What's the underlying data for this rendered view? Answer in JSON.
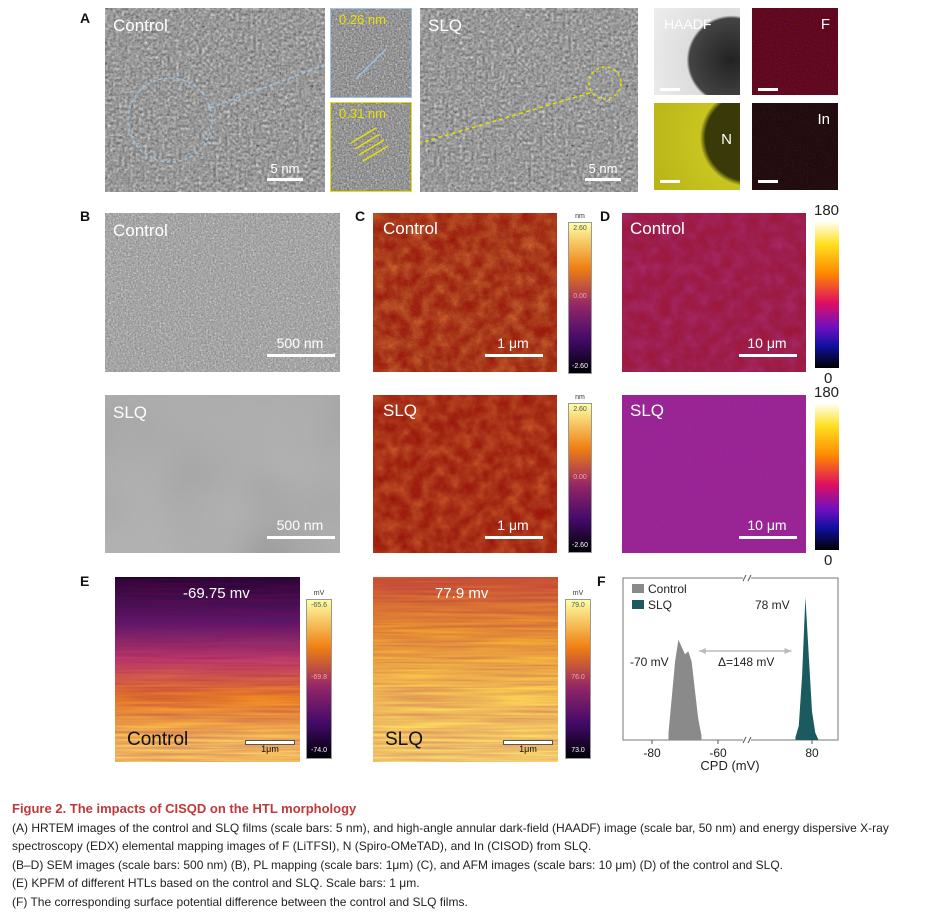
{
  "panels": {
    "A": {
      "label": "A",
      "control_label": "Control",
      "slq_label": "SLQ",
      "scale_control": "5 nm",
      "scale_slq": "5 nm",
      "inset_top_spacing": "0.26 nm",
      "inset_bottom_spacing": "0.31 nm",
      "edx": [
        "HAADF",
        "F",
        "N",
        "In"
      ]
    },
    "B": {
      "label": "B",
      "control_label": "Control",
      "slq_label": "SLQ",
      "scale": "500 nm"
    },
    "C": {
      "label": "C",
      "control_label": "Control",
      "slq_label": "SLQ",
      "scale": "1 μm",
      "colorbar": {
        "unit": "nm",
        "max": "2.60",
        "mid": "0.00",
        "min": "-2.60"
      }
    },
    "D": {
      "label": "D",
      "control_label": "Control",
      "slq_label": "SLQ",
      "scale": "10 μm",
      "colorbar": {
        "max": "180",
        "min": "0"
      }
    },
    "E": {
      "label": "E",
      "control_label": "Control",
      "slq_label": "SLQ",
      "scale": "1μm",
      "control_value": "-69.75 mv",
      "slq_value": "77.9 mv",
      "control_colorbar": {
        "unit": "mV",
        "max": "-65.6",
        "mid": "-69.8",
        "min": "-74.0"
      },
      "slq_colorbar": {
        "unit": "mV",
        "max": "79.0",
        "mid": "76.0",
        "min": "73.0"
      }
    },
    "F": {
      "label": "F"
    }
  },
  "colors": {
    "caption_title": "#c0393b",
    "control": "#8a8a8a",
    "slq": "#1b5a5e",
    "tem_circle_control": "#9cc3e6",
    "tem_circle_slq": "#e8e000"
  },
  "chart_data": {
    "type": "area",
    "xlabel": "CPD (mV)",
    "x_ticks": [
      "-80",
      "-60",
      "80"
    ],
    "axis_break": true,
    "xlim_left": [
      -85,
      -55
    ],
    "xlim_right": [
      65,
      85
    ],
    "legend": [
      "Control",
      "SLQ"
    ],
    "legend_position": "top-left",
    "annotations": {
      "control_peak": "-70 mV",
      "slq_peak": "78 mV",
      "delta": "Δ=148 mV"
    },
    "series": [
      {
        "name": "Control",
        "x": [
          -75,
          -74,
          -73,
          -72,
          -71,
          -70,
          -69,
          -68,
          -67,
          -66,
          -65
        ],
        "values": [
          0.05,
          0.3,
          0.55,
          0.7,
          0.65,
          0.6,
          0.62,
          0.55,
          0.35,
          0.15,
          0.03
        ]
      },
      {
        "name": "SLQ",
        "x": [
          75,
          76,
          77,
          78,
          79,
          80,
          81,
          82
        ],
        "values": [
          0.02,
          0.1,
          0.45,
          1.0,
          0.6,
          0.2,
          0.05,
          0
        ]
      }
    ]
  },
  "caption": {
    "title": "Figure 2.  The impacts of CISQD on the HTL morphology",
    "lines": [
      "(A) HRTEM images of the control and SLQ films (scale bars: 5 nm), and high-angle annular dark-field (HAADF) image (scale bar, 50 nm) and energy dispersive X-ray spectroscopy (EDX) elemental mapping images of F (LiTFSI), N (Spiro-OMeTAD), and In (CISOD) from SLQ.",
      "(B–D) SEM images (scale bars: 500 nm) (B), PL mapping (scale bars: 1μm) (C), and AFM images (scale bars: 10 μm) (D) of the control and SLQ.",
      "(E) KPFM of different HTLs based on the control and SLQ. Scale bars: 1 μm.",
      "(F) The corresponding surface potential difference between the control and SLQ films."
    ]
  }
}
